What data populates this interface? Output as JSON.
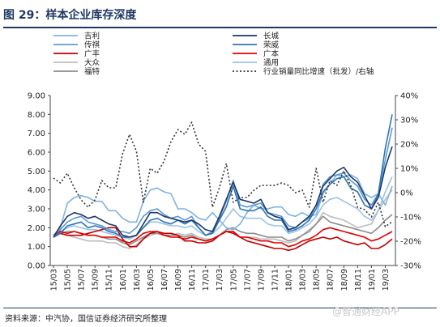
{
  "header": {
    "title": "图 29：样本企业库存深度"
  },
  "footer": {
    "source": "资料来源：中汽协，国信证券经济研究所整理",
    "watermark": "@智通财经APP"
  },
  "chart_data": {
    "type": "line",
    "title": "",
    "xlabel": "",
    "ylabel": "",
    "ylim": [
      0,
      9
    ],
    "y2lim": [
      -30,
      40
    ],
    "y_ticks": [
      "0.00",
      "1.00",
      "2.00",
      "3.00",
      "4.00",
      "5.00",
      "6.00",
      "7.00",
      "8.00",
      "9.00"
    ],
    "y2_ticks": [
      "-30%",
      "-20%",
      "-10%",
      "0%",
      "10%",
      "20%",
      "30%",
      "40%"
    ],
    "x": [
      "15/03",
      "15/04",
      "15/05",
      "15/06",
      "15/07",
      "15/08",
      "15/09",
      "15/10",
      "15/11",
      "15/12",
      "16/01",
      "16/02",
      "16/03",
      "16/04",
      "16/05",
      "16/06",
      "16/07",
      "16/08",
      "16/09",
      "16/10",
      "16/11",
      "16/12",
      "17/01",
      "17/02",
      "17/03",
      "17/04",
      "17/05",
      "17/06",
      "17/07",
      "17/08",
      "17/09",
      "17/10",
      "17/11",
      "17/12",
      "18/01",
      "18/02",
      "18/03",
      "18/04",
      "18/05",
      "18/06",
      "18/07",
      "18/08",
      "18/09",
      "18/10",
      "18/11",
      "18/12",
      "19/01",
      "19/02",
      "19/03",
      "19/04"
    ],
    "x_tick_labels": [
      "15/03",
      "15/05",
      "15/07",
      "15/09",
      "15/11",
      "16/01",
      "16/03",
      "16/05",
      "16/07",
      "16/09",
      "16/11",
      "17/01",
      "17/03",
      "17/05",
      "17/07",
      "17/09",
      "17/11",
      "18/01",
      "18/03",
      "18/05",
      "18/07",
      "18/09",
      "18/11",
      "19/01",
      "19/03"
    ],
    "legend": {
      "placement": "top",
      "columns": [
        [
          "吉利",
          "传祺",
          "广丰",
          "大众",
          "福特"
        ],
        [
          "长城",
          "荣威",
          "广本",
          "通用",
          "行业销量同比增速（批发）/右轴"
        ]
      ]
    },
    "series": [
      {
        "name": "吉利",
        "color": "#7fb3de",
        "axis": "left",
        "dash": false,
        "values": [
          1.6,
          2.0,
          3.3,
          3.6,
          3.7,
          3.6,
          3.4,
          3.4,
          2.9,
          2.9,
          2.5,
          2.3,
          2.3,
          3.4,
          4.0,
          4.1,
          3.9,
          3.8,
          3.0,
          3.0,
          2.8,
          2.5,
          2.4,
          2.8,
          2.4,
          2.0,
          1.9,
          2.2,
          2.8,
          3.2,
          3.0,
          3.0,
          3.1,
          3.1,
          2.7,
          2.6,
          2.8,
          2.6,
          2.7,
          3.8,
          4.3,
          4.8,
          4.7,
          4.8,
          4.6,
          3.8,
          3.6,
          3.8,
          3.2,
          4.2
        ]
      },
      {
        "name": "长城",
        "color": "#1f3864",
        "axis": "left",
        "dash": false,
        "values": [
          1.5,
          2.1,
          2.6,
          2.8,
          2.7,
          2.5,
          2.6,
          2.4,
          2.2,
          2.1,
          1.6,
          1.5,
          1.6,
          2.2,
          2.8,
          2.8,
          2.6,
          2.5,
          2.4,
          2.3,
          2.4,
          2.2,
          1.9,
          1.8,
          2.6,
          3.5,
          4.4,
          3.5,
          3.4,
          3.3,
          3.5,
          2.8,
          2.6,
          2.5,
          1.9,
          2.0,
          2.3,
          2.6,
          3.2,
          4.2,
          4.6,
          5.0,
          5.2,
          4.7,
          4.4,
          3.7,
          3.0,
          3.6,
          5.2,
          6.3
        ]
      },
      {
        "name": "传祺",
        "color": "#5b9bd5",
        "axis": "left",
        "dash": false,
        "values": [
          1.6,
          1.9,
          2.3,
          2.5,
          2.6,
          2.3,
          2.2,
          2.1,
          1.9,
          1.8,
          1.8,
          1.7,
          2.0,
          2.6,
          2.9,
          3.0,
          2.7,
          2.5,
          2.6,
          2.4,
          2.6,
          2.0,
          1.6,
          1.8,
          2.5,
          3.4,
          4.5,
          3.2,
          3.1,
          3.2,
          3.3,
          2.8,
          2.7,
          2.6,
          2.1,
          2.0,
          2.3,
          2.5,
          3.2,
          4.3,
          4.7,
          4.8,
          4.9,
          4.5,
          4.2,
          3.5,
          3.2,
          3.8,
          5.6,
          7.3
        ]
      },
      {
        "name": "荣威",
        "color": "#2e75b6",
        "axis": "left",
        "dash": false,
        "values": [
          1.5,
          1.7,
          2.1,
          2.2,
          2.3,
          2.0,
          2.1,
          2.0,
          1.8,
          1.7,
          1.5,
          1.5,
          1.6,
          2.0,
          2.4,
          2.5,
          2.3,
          2.2,
          2.4,
          2.2,
          2.4,
          2.0,
          1.6,
          1.7,
          2.4,
          3.1,
          4.2,
          3.0,
          2.9,
          2.9,
          3.1,
          2.6,
          2.4,
          2.4,
          1.8,
          1.9,
          2.1,
          2.4,
          3.0,
          3.9,
          4.3,
          4.6,
          4.7,
          4.1,
          3.9,
          3.2,
          3.0,
          3.8,
          6.2,
          8.0
        ]
      },
      {
        "name": "广丰",
        "color": "#c00000",
        "axis": "left",
        "dash": false,
        "values": [
          1.5,
          1.7,
          1.6,
          1.6,
          1.6,
          1.7,
          1.8,
          1.9,
          2.0,
          2.0,
          1.4,
          1.0,
          1.0,
          1.4,
          1.7,
          1.8,
          1.7,
          1.7,
          1.6,
          1.3,
          1.3,
          1.2,
          1.2,
          1.3,
          1.6,
          1.8,
          1.8,
          1.5,
          1.3,
          1.2,
          1.1,
          1.0,
          0.9,
          0.9,
          0.8,
          0.9,
          1.1,
          1.3,
          1.4,
          1.5,
          1.4,
          1.5,
          1.3,
          1.2,
          1.1,
          1.2,
          0.9,
          0.9,
          1.1,
          1.4
        ]
      },
      {
        "name": "广本",
        "color": "#e00000",
        "axis": "left",
        "dash": false,
        "values": [
          1.6,
          1.8,
          1.7,
          1.8,
          1.7,
          1.6,
          1.6,
          1.5,
          1.5,
          1.5,
          1.3,
          1.2,
          1.4,
          1.7,
          1.8,
          1.8,
          1.6,
          1.5,
          1.5,
          1.4,
          1.5,
          1.4,
          1.3,
          1.4,
          1.6,
          1.8,
          1.7,
          1.5,
          1.5,
          1.4,
          1.3,
          1.3,
          1.2,
          1.2,
          1.0,
          1.1,
          1.3,
          1.4,
          1.6,
          1.9,
          2.0,
          1.9,
          1.8,
          1.7,
          1.6,
          1.5,
          1.3,
          1.4,
          1.6,
          1.8
        ]
      },
      {
        "name": "大众",
        "color": "#bdbdbd",
        "axis": "left",
        "dash": false,
        "values": [
          1.5,
          1.7,
          1.6,
          1.5,
          1.4,
          1.3,
          1.3,
          1.3,
          1.2,
          1.2,
          1.0,
          0.9,
          1.1,
          1.4,
          1.6,
          1.7,
          1.6,
          1.6,
          1.7,
          1.6,
          1.7,
          1.5,
          1.4,
          1.4,
          1.6,
          1.8,
          1.8,
          1.5,
          1.5,
          1.5,
          1.4,
          1.4,
          1.4,
          1.3,
          1.2,
          1.3,
          1.6,
          1.9,
          2.2,
          2.8,
          2.6,
          2.5,
          2.4,
          2.2,
          2.0,
          2.1,
          2.2,
          2.9,
          3.5,
          4.0
        ]
      },
      {
        "name": "通用",
        "color": "#9dc3e6",
        "axis": "left",
        "dash": false,
        "values": [
          1.6,
          1.8,
          2.0,
          2.1,
          2.0,
          1.9,
          1.9,
          1.8,
          1.7,
          1.6,
          1.5,
          1.4,
          1.6,
          2.0,
          2.3,
          2.3,
          2.2,
          2.1,
          2.1,
          2.0,
          2.1,
          1.8,
          1.6,
          1.7,
          2.0,
          2.5,
          3.0,
          2.6,
          2.5,
          2.5,
          2.5,
          2.2,
          2.1,
          2.1,
          1.7,
          1.8,
          2.0,
          2.2,
          2.6,
          3.2,
          3.5,
          3.6,
          3.4,
          3.2,
          3.0,
          2.6,
          2.4,
          2.9,
          3.9,
          4.7
        ]
      },
      {
        "name": "福特",
        "color": "#8c8c8c",
        "axis": "left",
        "dash": false,
        "values": [
          1.6,
          1.7,
          1.8,
          1.8,
          1.7,
          1.6,
          1.6,
          1.5,
          1.4,
          1.4,
          1.2,
          1.1,
          1.3,
          1.5,
          1.7,
          1.7,
          1.6,
          1.6,
          1.6,
          1.5,
          1.6,
          1.4,
          1.3,
          1.4,
          1.6,
          1.9,
          2.0,
          1.8,
          1.7,
          1.7,
          1.6,
          1.5,
          1.5,
          1.5,
          1.3,
          1.4,
          1.6,
          1.8,
          2.2,
          2.6,
          2.3,
          2.2,
          2.1,
          2.0,
          1.9,
          1.8,
          1.7,
          2.0,
          2.4,
          2.7
        ]
      },
      {
        "name": "行业销量同比增速（批发）/右轴",
        "color": "#333333",
        "axis": "right",
        "dash": true,
        "values": [
          6,
          4,
          8,
          2,
          -3,
          -6,
          -3,
          5,
          2,
          2,
          16,
          24,
          17,
          -4,
          10,
          8,
          13,
          21,
          26,
          24,
          29,
          20,
          17,
          -6,
          2,
          12,
          -4,
          -2,
          -2,
          1,
          3,
          3,
          3,
          4,
          3,
          0,
          1,
          -6,
          10,
          -4,
          5,
          3,
          9,
          3,
          -6,
          -7,
          -10,
          -4,
          -14,
          -12
        ]
      }
    ]
  }
}
